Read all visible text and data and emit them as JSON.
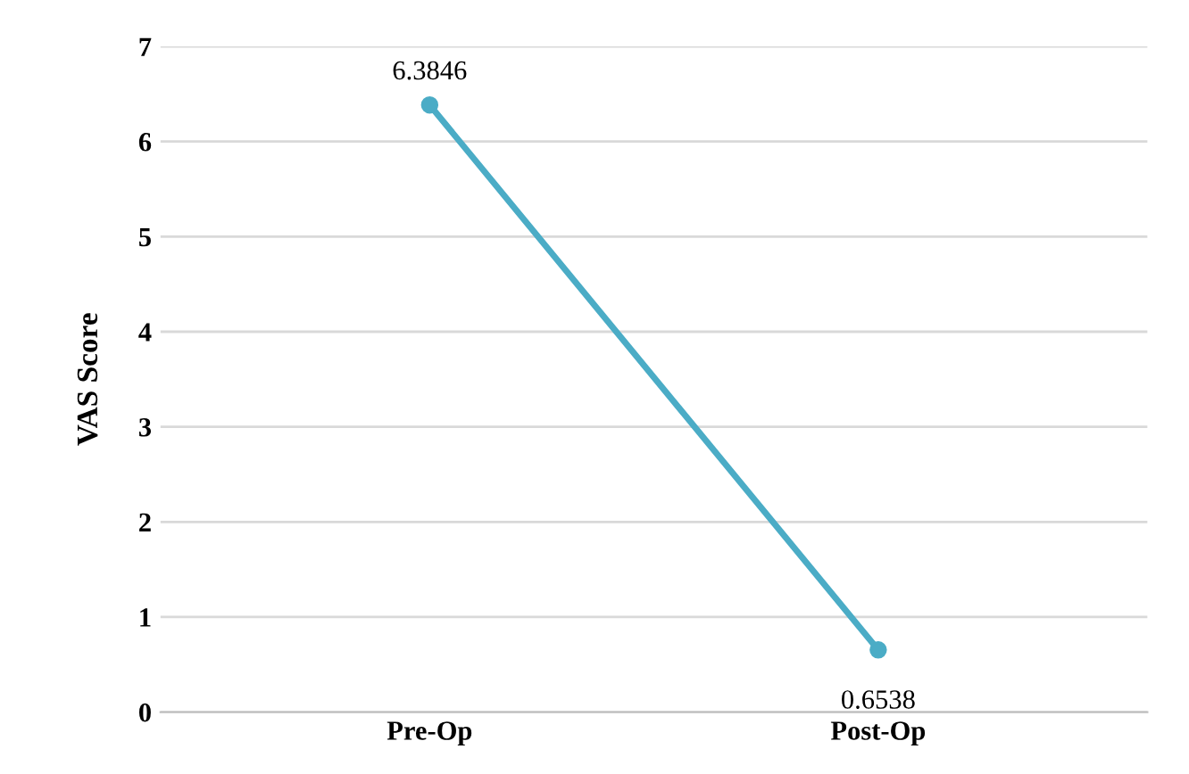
{
  "chart_data": {
    "type": "line",
    "ylabel": "VAS Score",
    "categories": [
      "Pre-Op",
      "Post-Op"
    ],
    "series": [
      {
        "color": "#4bacc6",
        "values": [
          6.3846,
          0.6538
        ]
      }
    ],
    "ylim": [
      0,
      7
    ],
    "yticks": [
      0,
      1,
      2,
      3,
      4,
      5,
      6,
      7
    ],
    "grid": "y",
    "marker": "circle",
    "line_style": "solid",
    "data_labels": true
  }
}
